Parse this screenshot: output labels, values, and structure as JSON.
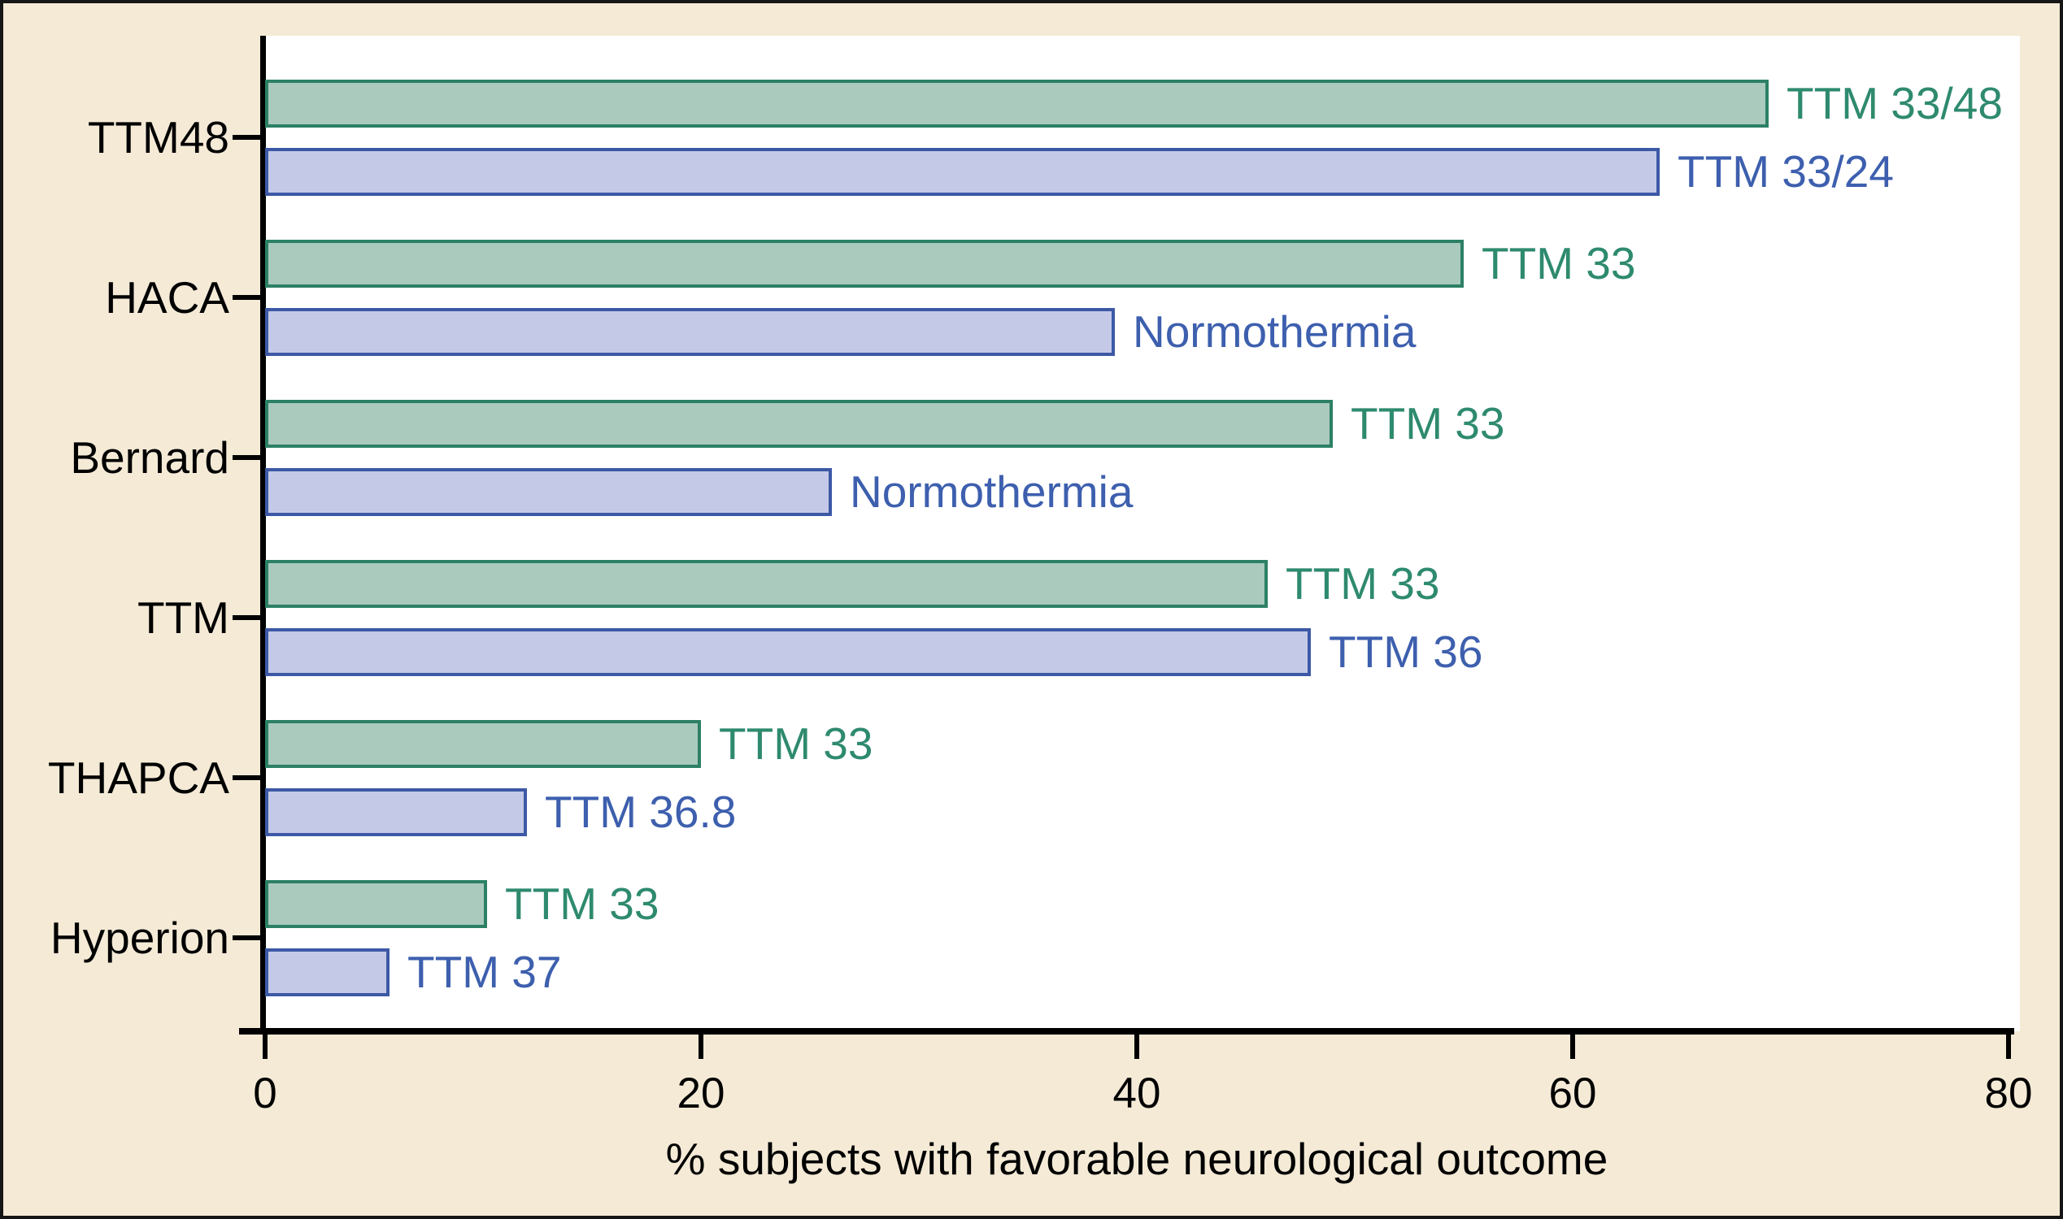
{
  "figure": {
    "frame_color": "#161616",
    "background_color": "#F4EAD6",
    "plot_background": "#FFFFFF",
    "axis_color": "#000000"
  },
  "chart_data": {
    "type": "bar",
    "orientation": "horizontal",
    "title": "",
    "xlabel": "% subjects with favorable neurological outcome",
    "ylabel": "",
    "xlim": [
      0,
      80
    ],
    "x_ticks": [
      0,
      20,
      40,
      60,
      80
    ],
    "grid": false,
    "legend_position": "none (bars labeled directly at bar ends)",
    "categories": [
      "TTM48",
      "HACA",
      "Bernard",
      "TTM",
      "THAPCA",
      "Hyperion"
    ],
    "series": [
      {
        "name": "green",
        "fill": "#A9CABD",
        "edge": "#2C8065",
        "label_color": "#2E8A6E",
        "values": [
          69,
          55,
          49,
          46,
          20,
          10.2
        ],
        "bar_labels": [
          "TTM 33/48",
          "TTM 33",
          "TTM 33",
          "TTM 33",
          "TTM 33",
          "TTM 33"
        ]
      },
      {
        "name": "blue",
        "fill": "#C5C9E8",
        "edge": "#3C59A5",
        "label_color": "#3D5FAE",
        "values": [
          64,
          39,
          26,
          48,
          12,
          5.7
        ],
        "bar_labels": [
          "TTM 33/24",
          "Normothermia",
          "Normothermia",
          "TTM 36",
          "TTM 36.8",
          "TTM 37"
        ]
      }
    ]
  }
}
